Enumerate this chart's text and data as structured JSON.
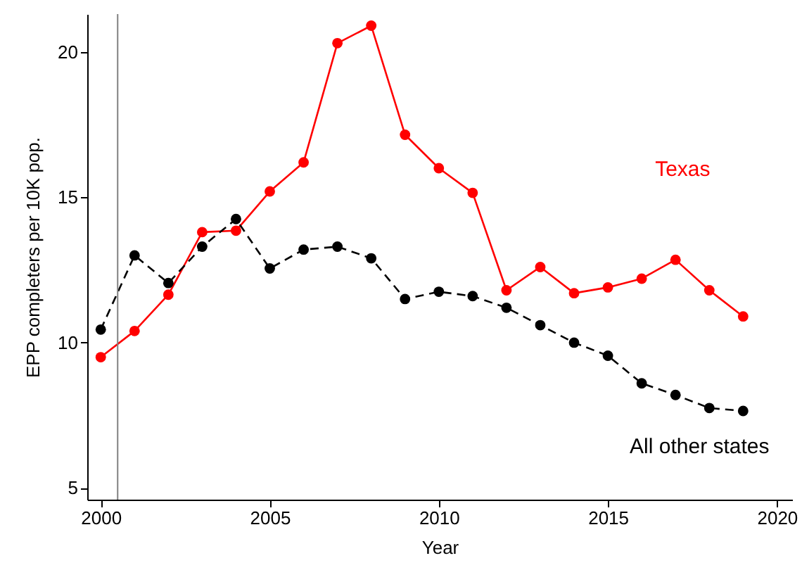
{
  "chart_data": {
    "type": "line",
    "xlabel": "Year",
    "ylabel": "EPP completers per 10K pop.",
    "x": [
      2000,
      2001,
      2002,
      2003,
      2004,
      2005,
      2006,
      2007,
      2008,
      2009,
      2010,
      2011,
      2012,
      2013,
      2014,
      2015,
      2016,
      2017,
      2018,
      2019
    ],
    "series": [
      {
        "name": "Texas",
        "color": "#ff0000",
        "line_style": "solid",
        "values": [
          9.5,
          10.4,
          11.65,
          13.8,
          13.85,
          15.2,
          16.2,
          20.3,
          20.9,
          17.15,
          16.0,
          15.15,
          11.8,
          12.6,
          11.7,
          11.9,
          12.2,
          12.85,
          11.8,
          10.9
        ]
      },
      {
        "name": "All other states",
        "color": "#000000",
        "line_style": "dashed",
        "values": [
          10.45,
          13.0,
          12.05,
          13.3,
          14.25,
          12.55,
          13.2,
          13.3,
          12.9,
          11.5,
          11.75,
          11.6,
          11.2,
          10.6,
          10.0,
          9.55,
          8.6,
          8.2,
          7.75,
          7.65
        ]
      }
    ],
    "xlim": [
      1999.6,
      2020.45
    ],
    "xticks": [
      2000,
      2005,
      2010,
      2015,
      2020
    ],
    "ylim": [
      4.6,
      21.3
    ],
    "yticks": [
      5,
      10,
      15,
      20
    ],
    "ref_lines": [
      {
        "axis": "x",
        "value": 2000.5,
        "color": "#808080"
      }
    ],
    "marker": "circle",
    "grid": false
  }
}
